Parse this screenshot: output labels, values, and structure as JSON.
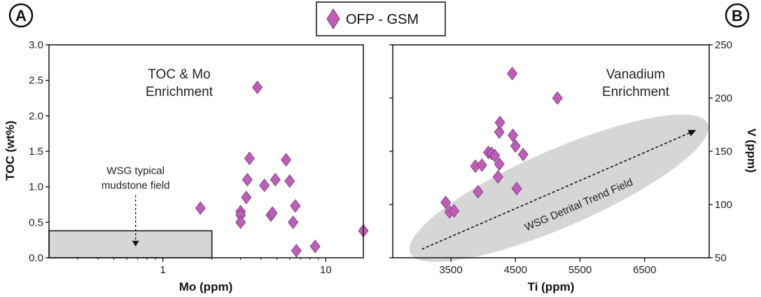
{
  "legend": {
    "label": "OFP - GSM",
    "marker_color": "#bd5fb8",
    "marker_stroke": "#7a3378"
  },
  "chart_data": [
    {
      "panel": "A",
      "type": "scatter",
      "title": "",
      "xlabel": "Mo (ppm)",
      "ylabel": "TOC (wt%)",
      "xscale": "log",
      "xlim": [
        0.2,
        17
      ],
      "ylim": [
        0,
        3.0
      ],
      "xticks": [
        1,
        10
      ],
      "xtick_labels": [
        "1",
        "10"
      ],
      "yticks": [
        0,
        0.5,
        1.0,
        1.5,
        2.0,
        2.5,
        3.0
      ],
      "ytick_labels": [
        "0.0",
        "0.5",
        "1.0",
        "1.5",
        "2.0",
        "2.5",
        "3.0"
      ],
      "series": [
        {
          "name": "OFP - GSM",
          "x": [
            1.7,
            3.0,
            3.0,
            3.0,
            3.25,
            3.3,
            3.4,
            3.8,
            4.2,
            4.6,
            4.7,
            4.9,
            5.7,
            6.0,
            6.3,
            6.5,
            6.6,
            8.6,
            17.0
          ],
          "y": [
            0.7,
            0.65,
            0.6,
            0.5,
            0.85,
            1.1,
            1.4,
            2.4,
            1.02,
            0.6,
            0.63,
            1.1,
            1.38,
            1.08,
            0.5,
            0.73,
            0.1,
            0.16,
            0.38
          ]
        }
      ],
      "annotations": [
        {
          "id": "enrichment",
          "lines": [
            "TOC & Mo",
            "Enrichment"
          ]
        },
        {
          "id": "field",
          "lines": [
            "WSG typical",
            "mudstone field"
          ],
          "field_x": [
            0.2,
            2.0
          ],
          "field_y": [
            0,
            0.38
          ],
          "arrow_x": 0.68,
          "arrow_from_y": 0.88,
          "arrow_to_y": 0.16
        }
      ]
    },
    {
      "panel": "B",
      "type": "scatter",
      "title": "",
      "xlabel": "Ti (ppm)",
      "ylabel": "V (ppm)",
      "xscale": "linear",
      "xlim": [
        2600,
        7500
      ],
      "ylim": [
        50,
        250
      ],
      "xticks": [
        3500,
        4500,
        5500,
        6500
      ],
      "xtick_labels": [
        "3500",
        "4500",
        "5500",
        "6500"
      ],
      "yticks": [
        50,
        100,
        150,
        200,
        250
      ],
      "ytick_labels": [
        "50",
        "100",
        "150",
        "200",
        "250"
      ],
      "series": [
        {
          "name": "OFP - GSM",
          "x": [
            3420,
            3480,
            3550,
            3880,
            3920,
            3980,
            4080,
            4130,
            4180,
            4230,
            4250,
            4250,
            4260,
            4450,
            4460,
            4500,
            4520,
            4620,
            5150
          ],
          "y": [
            102,
            93,
            94,
            136,
            112,
            137,
            149,
            148,
            146,
            126,
            138,
            168,
            177,
            223,
            165,
            155,
            115,
            147,
            200
          ]
        }
      ],
      "annotations": [
        {
          "id": "enrichment",
          "lines": [
            "Vanadium",
            "Enrichment"
          ]
        },
        {
          "id": "trend",
          "label": "WSG Detrital Trend Field",
          "arrow_from": [
            3050,
            58
          ],
          "arrow_to": [
            7300,
            170
          ]
        }
      ]
    }
  ]
}
